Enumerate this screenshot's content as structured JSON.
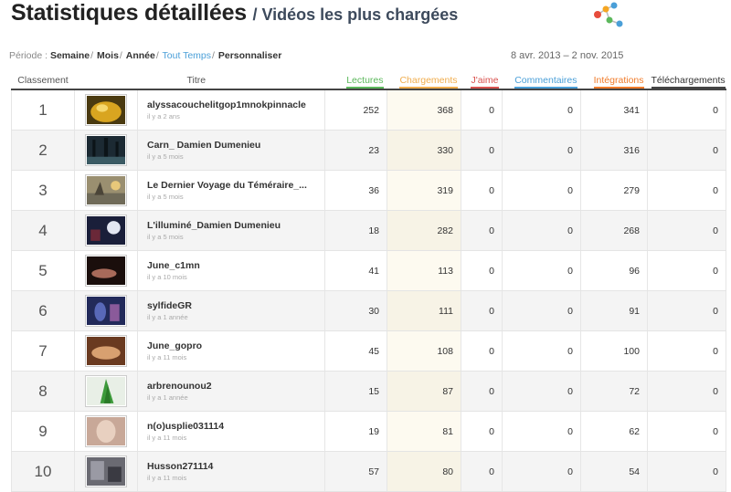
{
  "header": {
    "title": "Statistiques détaillées",
    "subtitle": "/ Vidéos les plus chargées"
  },
  "period": {
    "label": "Période :",
    "options": [
      "Semaine",
      "Mois",
      "Année",
      "Tout Temps",
      "Personnaliser"
    ],
    "active": "Tout Temps",
    "date_range": "8 avr. 2013 – 2 nov. 2015"
  },
  "columns": {
    "rank": "Classement",
    "title": "Titre",
    "lectures": "Lectures",
    "chargements": "Chargements",
    "jaime": "J'aime",
    "commentaires": "Commentaires",
    "integrations": "Intégrations",
    "telechargements": "Téléchargements"
  },
  "colors": {
    "lectures": "#5cb85c",
    "chargements": "#f0ad4e",
    "jaime": "#d9534f",
    "commentaires": "#4a9fd8",
    "integrations": "#f07b2a",
    "telechargements": "#444444"
  },
  "rows": [
    {
      "rank": "1",
      "title": "alyssacouchelitgop1mnokpinnacle",
      "date": "il y a 2 ans",
      "lectures": "252",
      "chargements": "368",
      "jaime": "0",
      "commentaires": "0",
      "integrations": "341",
      "telechargements": "0",
      "thumb": "golden-bowl"
    },
    {
      "rank": "2",
      "title": "Carn_ Damien Dumenieu",
      "date": "il y a 5 mois",
      "lectures": "23",
      "chargements": "330",
      "jaime": "0",
      "commentaires": "0",
      "integrations": "316",
      "telechargements": "0",
      "thumb": "dark-forest"
    },
    {
      "rank": "3",
      "title": "Le Dernier Voyage du Téméraire_...",
      "date": "il y a 5 mois",
      "lectures": "36",
      "chargements": "319",
      "jaime": "0",
      "commentaires": "0",
      "integrations": "279",
      "telechargements": "0",
      "thumb": "ship-painting"
    },
    {
      "rank": "4",
      "title": "L'illuminé_Damien Dumenieu",
      "date": "il y a 5 mois",
      "lectures": "18",
      "chargements": "282",
      "jaime": "0",
      "commentaires": "0",
      "integrations": "268",
      "telechargements": "0",
      "thumb": "night-scene"
    },
    {
      "rank": "5",
      "title": "June_c1mn",
      "date": "il y a 10 mois",
      "lectures": "41",
      "chargements": "113",
      "jaime": "0",
      "commentaires": "0",
      "integrations": "96",
      "telechargements": "0",
      "thumb": "dark-figure"
    },
    {
      "rank": "6",
      "title": "sylfideGR",
      "date": "il y a 1 année",
      "lectures": "30",
      "chargements": "111",
      "jaime": "0",
      "commentaires": "0",
      "integrations": "91",
      "telechargements": "0",
      "thumb": "blue-figure"
    },
    {
      "rank": "7",
      "title": "June_gopro",
      "date": "il y a 11 mois",
      "lectures": "45",
      "chargements": "108",
      "jaime": "0",
      "commentaires": "0",
      "integrations": "100",
      "telechargements": "0",
      "thumb": "warm-figure"
    },
    {
      "rank": "8",
      "title": "arbrenounou2",
      "date": "il y a 1 année",
      "lectures": "15",
      "chargements": "87",
      "jaime": "0",
      "commentaires": "0",
      "integrations": "72",
      "telechargements": "0",
      "thumb": "green-shape"
    },
    {
      "rank": "9",
      "title": "n(o)usplie031114",
      "date": "il y a 11 mois",
      "lectures": "19",
      "chargements": "81",
      "jaime": "0",
      "commentaires": "0",
      "integrations": "62",
      "telechargements": "0",
      "thumb": "pale-figure"
    },
    {
      "rank": "10",
      "title": "Husson271114",
      "date": "il y a 11 mois",
      "lectures": "57",
      "chargements": "80",
      "jaime": "0",
      "commentaires": "0",
      "integrations": "54",
      "telechargements": "0",
      "thumb": "grey-room"
    }
  ]
}
